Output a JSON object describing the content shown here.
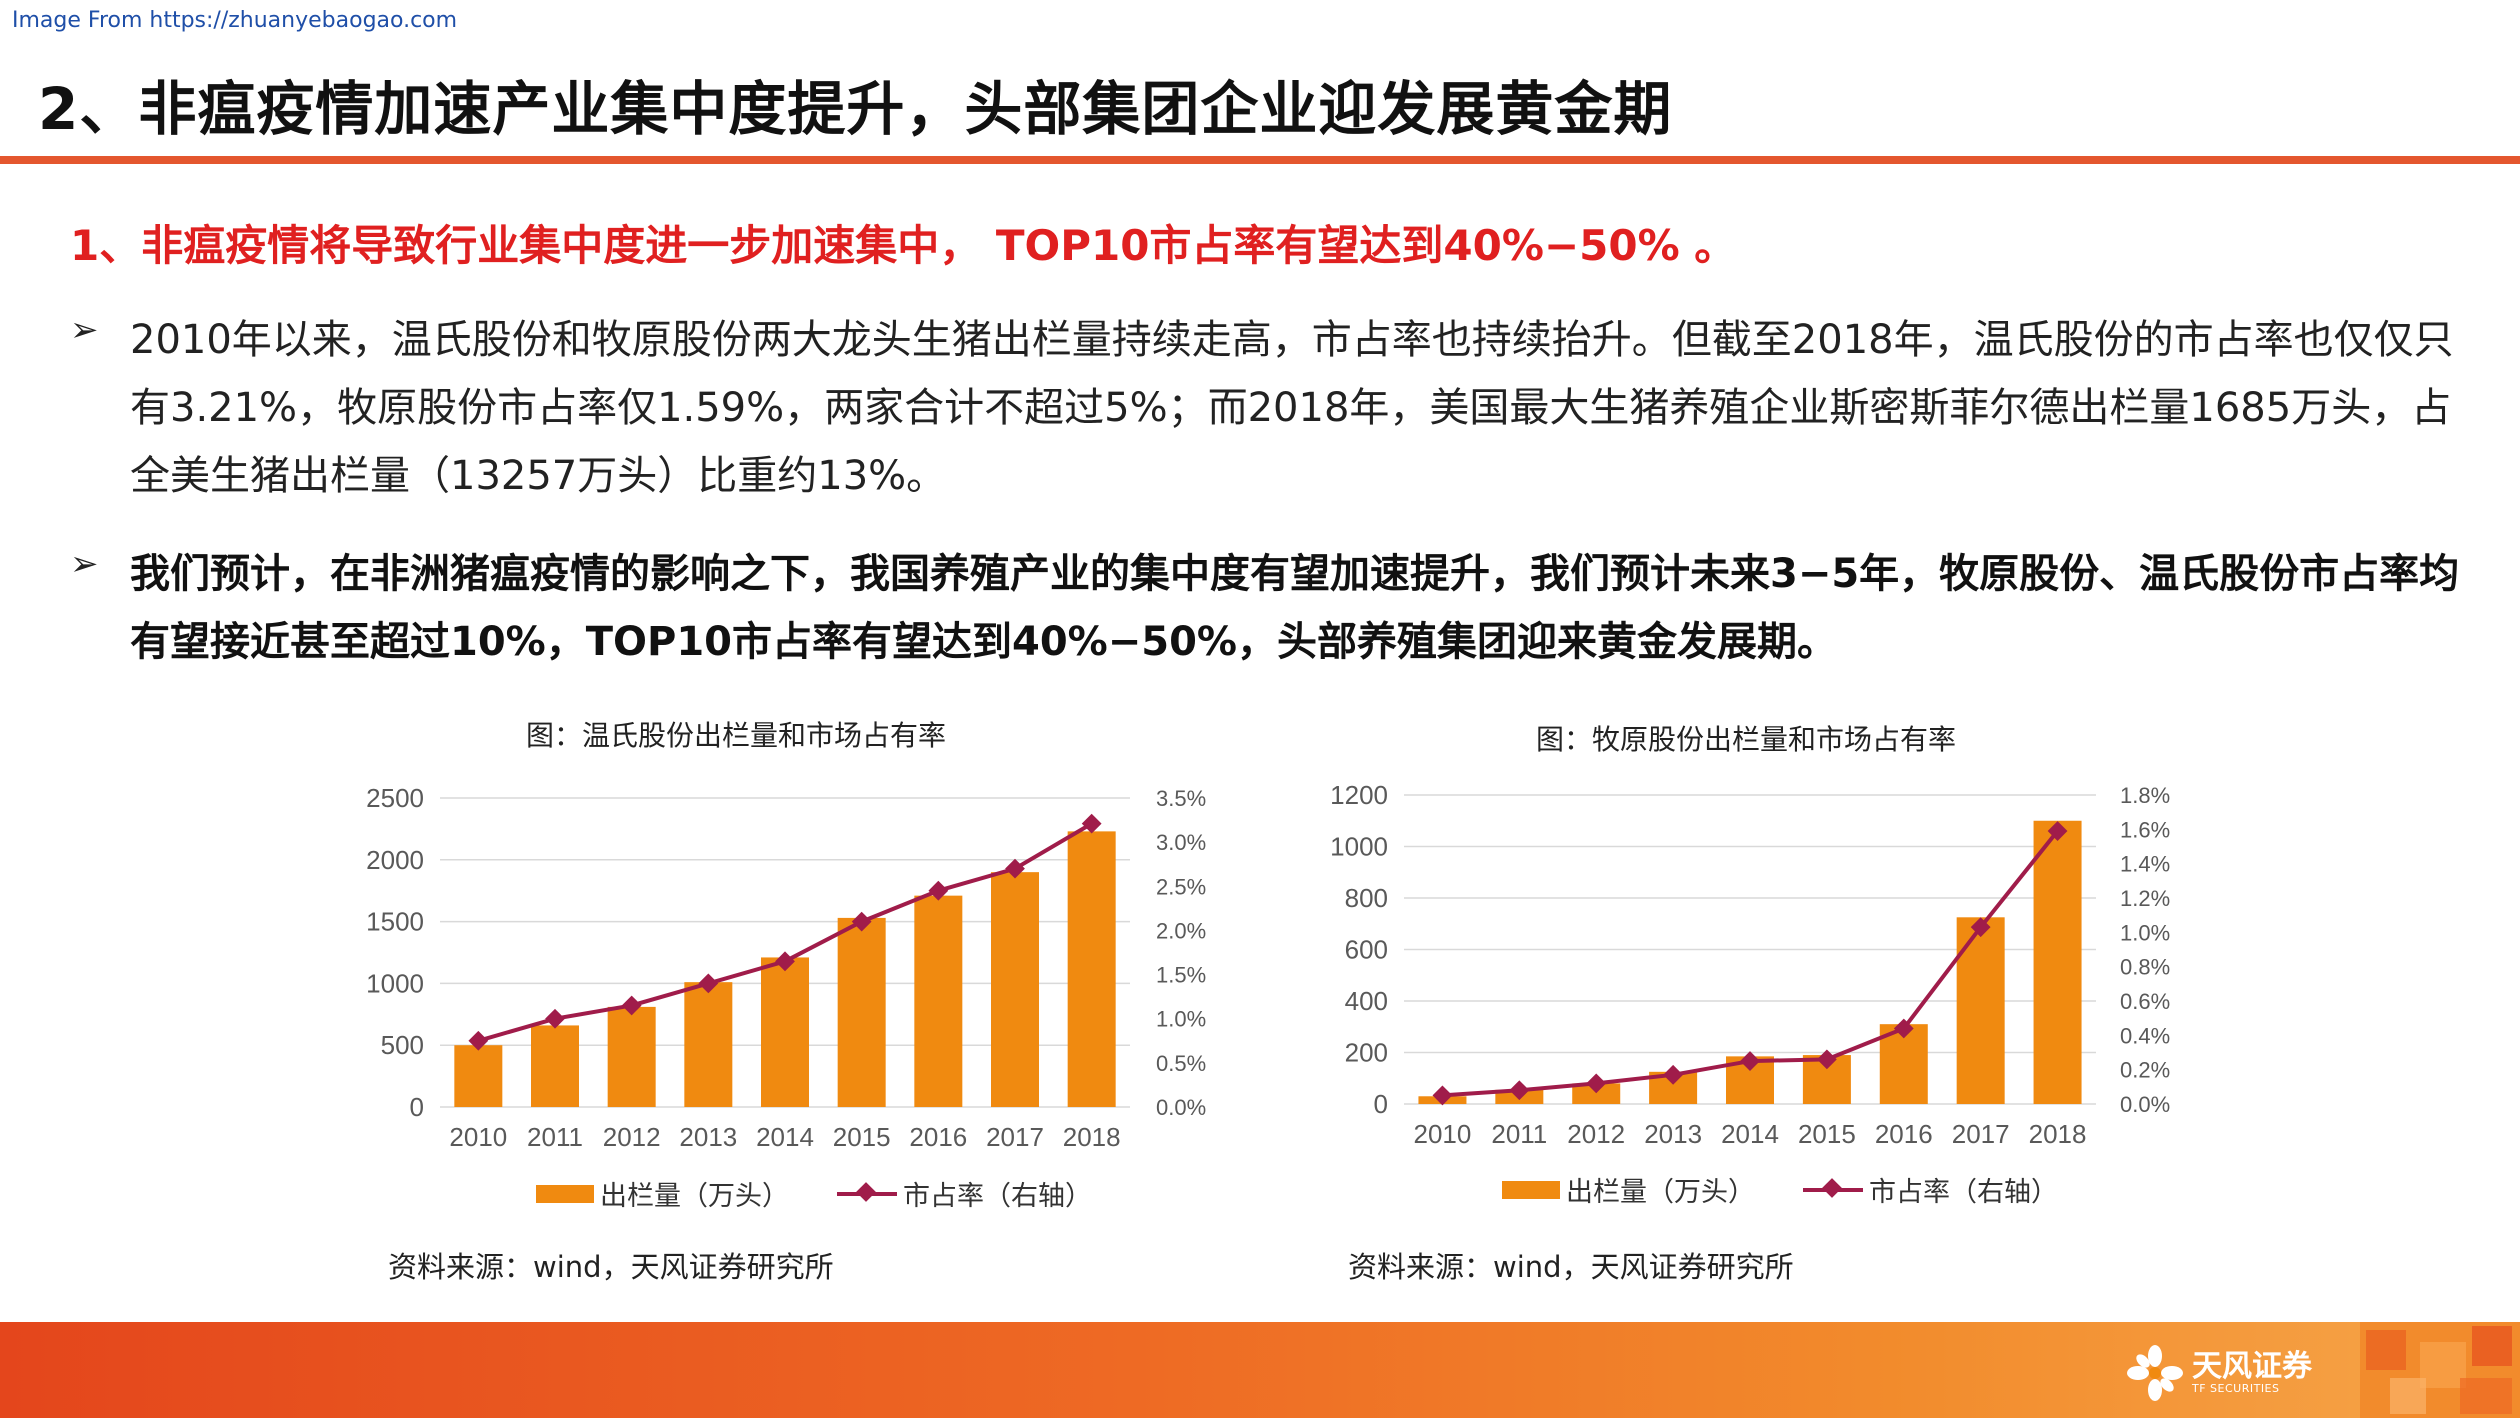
{
  "source_url": "Image From https://zhuanyebaogao.com",
  "page_title": "2、非瘟疫情加速产业集中度提升，头部集团企业迎发展黄金期",
  "headline": "1、非瘟疫情将导致行业集中度进一步加速集中， TOP10市占率有望达到40%−50% 。",
  "bullets": [
    {
      "marker": "➢",
      "text": "2010年以来，温氏股份和牧原股份两大龙头生猪出栏量持续走高，市占率也持续抬升。但截至2018年，温氏股份的市占率也仅仅只有3.21%，牧原股份市占率仅1.59%，两家合计不超过5%；而2018年，美国最大生猪养殖企业斯密斯菲尔德出栏量1685万头，占全美生猪出栏量（13257万头）比重约13%。"
    },
    {
      "marker": "➢",
      "text": "我们预计，在非洲猪瘟疫情的影响之下，我国养殖产业的集中度有望加速提升，我们预计未来3−5年，牧原股份、温氏股份市占率均有望接近甚至超过10%，TOP10市占率有望达到40%−50%，头部养殖集团迎来黄金发展期。"
    }
  ],
  "colors": {
    "bar": "#f08a10",
    "line": "#a01c4a",
    "title_rule": "#e4572e",
    "headline": "#e02020"
  },
  "chart_data": [
    {
      "type": "bar",
      "title": "图：温氏股份出栏量和市场占有率",
      "categories": [
        "2010",
        "2011",
        "2012",
        "2013",
        "2014",
        "2015",
        "2016",
        "2017",
        "2018"
      ],
      "series": [
        {
          "name": "出栏量（万头）",
          "kind": "bar",
          "axis": "left",
          "values": [
            500,
            660,
            810,
            1010,
            1210,
            1530,
            1710,
            1900,
            2230
          ]
        },
        {
          "name": "市占率（右轴）",
          "kind": "line",
          "axis": "right",
          "values": [
            0.75,
            1.0,
            1.15,
            1.4,
            1.65,
            2.1,
            2.45,
            2.7,
            3.21
          ]
        }
      ],
      "ylim": [
        0,
        2500
      ],
      "yticks": [
        "0",
        "500",
        "1000",
        "1500",
        "2000",
        "2500"
      ],
      "y2lim": [
        0,
        3.5
      ],
      "y2ticks": [
        "0.0%",
        "0.5%",
        "1.0%",
        "1.5%",
        "2.0%",
        "2.5%",
        "3.0%",
        "3.5%"
      ],
      "legend_position": "bottom",
      "source": "资料来源：wind，天风证券研究所"
    },
    {
      "type": "bar",
      "title": "图：牧原股份出栏量和市场占有率",
      "categories": [
        "2010",
        "2011",
        "2012",
        "2013",
        "2014",
        "2015",
        "2016",
        "2017",
        "2018"
      ],
      "series": [
        {
          "name": "出栏量（万头）",
          "kind": "bar",
          "axis": "left",
          "values": [
            30,
            55,
            80,
            125,
            185,
            190,
            310,
            725,
            1100
          ]
        },
        {
          "name": "市占率（右轴）",
          "kind": "line",
          "axis": "right",
          "values": [
            0.05,
            0.08,
            0.12,
            0.17,
            0.25,
            0.26,
            0.44,
            1.03,
            1.59
          ]
        }
      ],
      "ylim": [
        0,
        1200
      ],
      "yticks": [
        "0",
        "200",
        "400",
        "600",
        "800",
        "1000",
        "1200"
      ],
      "y2lim": [
        0,
        1.8
      ],
      "y2ticks": [
        "0.0%",
        "0.2%",
        "0.4%",
        "0.6%",
        "0.8%",
        "1.0%",
        "1.2%",
        "1.4%",
        "1.6%",
        "1.8%"
      ],
      "legend_position": "bottom",
      "source": "资料来源：wind，天风证券研究所"
    }
  ],
  "footer": {
    "logo_cn": "天风证券",
    "logo_en": "TF SECURITIES"
  }
}
